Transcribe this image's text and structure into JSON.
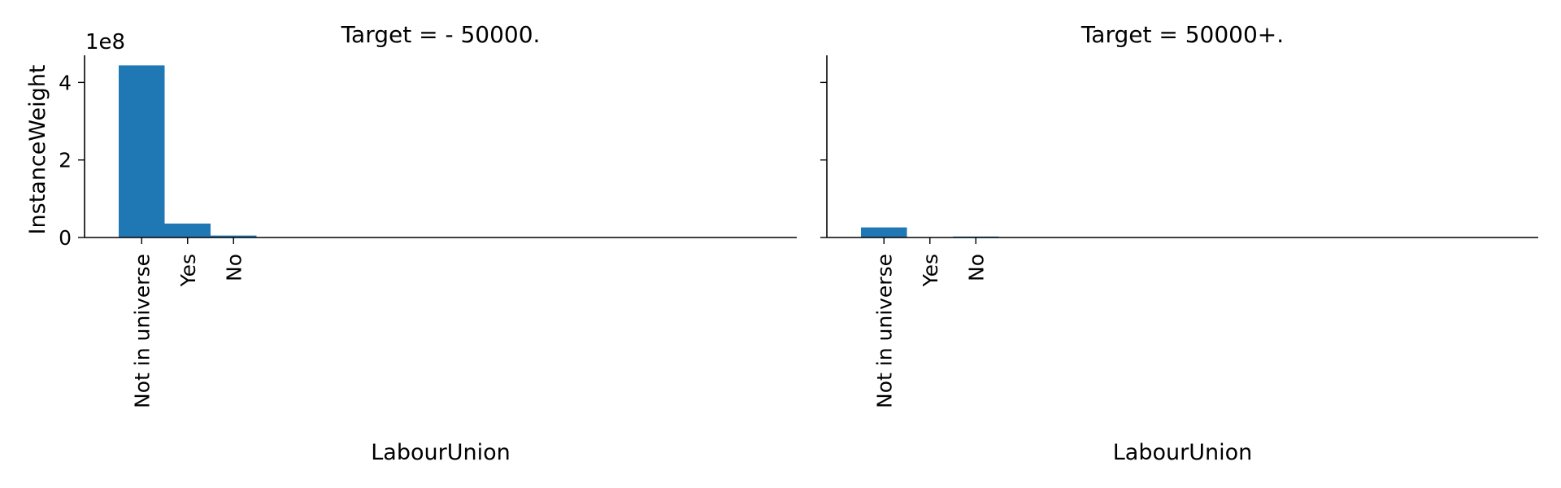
{
  "chart_data": {
    "type": "bar",
    "layout": "facet-grid",
    "x_label": "LabourUnion",
    "y_label": "InstanceWeight",
    "y_offset_label": "1e8",
    "y_scale": 100000000,
    "ylim": [
      0,
      470000000
    ],
    "y_ticks": [
      {
        "value": 0,
        "label": "0"
      },
      {
        "value": 200000000,
        "label": "2"
      },
      {
        "value": 400000000,
        "label": "4"
      }
    ],
    "categories": [
      "Not in universe",
      "Yes",
      "No"
    ],
    "color": "#1f77b4",
    "grid": false,
    "panels": [
      {
        "title": "Target =  - 50000.",
        "values": [
          444000000,
          36000000,
          5000000
        ]
      },
      {
        "title": "Target =  50000+.",
        "values": [
          26000000,
          900000,
          2500000
        ]
      }
    ]
  }
}
